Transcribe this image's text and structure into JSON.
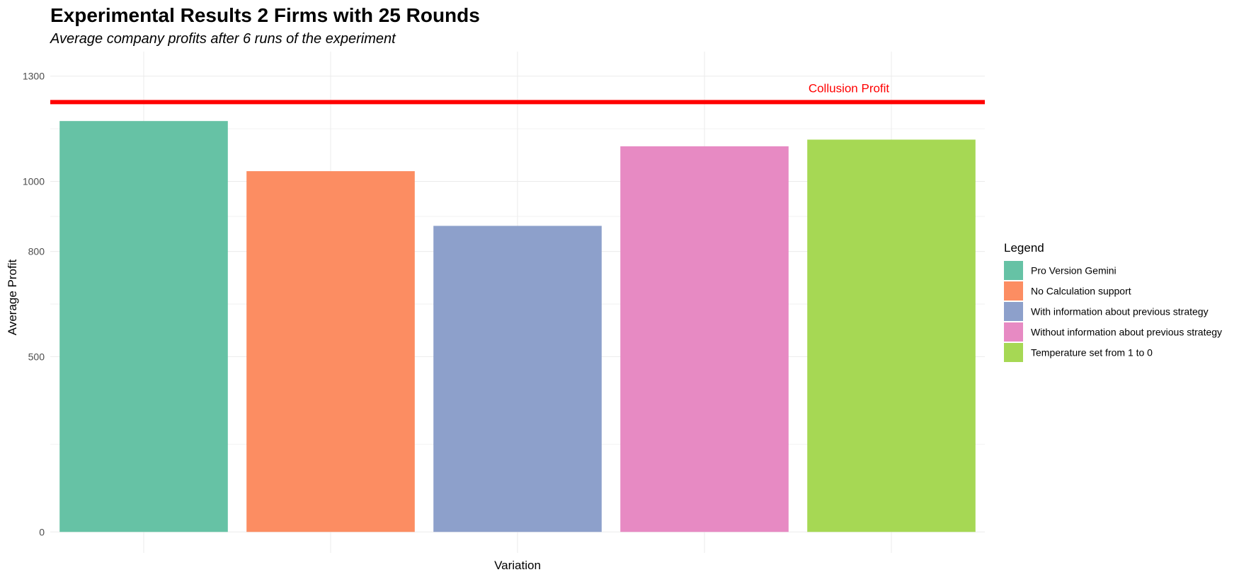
{
  "chart_data": {
    "type": "bar",
    "title": "Experimental Results 2 Firms with 25 Rounds",
    "subtitle": "Average company profits after 6 runs of the experiment",
    "xlabel": "Variation",
    "ylabel": "Average Profit",
    "ylim": [
      -60,
      1370
    ],
    "yticks": [
      0,
      500,
      800,
      1000,
      1300
    ],
    "ytick_labels": [
      "0",
      "500",
      "800",
      "1000",
      "1300"
    ],
    "y_minor_gridlines": [
      250,
      650,
      900,
      1150
    ],
    "grid": true,
    "categories": [
      "Pro Version Gemini",
      "No Calculation support",
      "With information about previous strategy",
      "Without information about previous strategy",
      "Temperature set from 1 to 0"
    ],
    "values": [
      1172,
      1029,
      873,
      1100,
      1119
    ],
    "colors": [
      "#66c2a5",
      "#fc8d62",
      "#8da0cb",
      "#e78ac3",
      "#a6d854"
    ],
    "legend": {
      "title": "Legend",
      "position": "right"
    },
    "reference_line": {
      "label": "Collusion Profit",
      "value": 1226,
      "color": "#ff0000"
    }
  }
}
